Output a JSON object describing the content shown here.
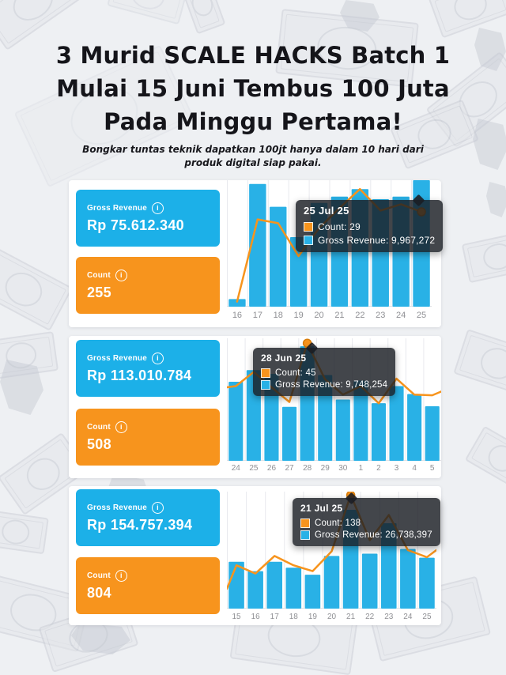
{
  "header": {
    "title_line1": "3 Murid SCALE HACKS Batch 1",
    "title_line2": "Mulai 15 Juni Tembus 100 Juta",
    "title_line3": "Pada Minggu Pertama!",
    "subtitle_line1": "Bongkar tuntas teknik dapatkan 100jt hanya dalam 10 hari dari",
    "subtitle_line2": "produk digital siap pakai."
  },
  "colors": {
    "bar_blue": "#29b1e6",
    "card_blue": "#1cb0e8",
    "orange": "#f7941d",
    "dot_stroke": "#d97d0a",
    "gridline": "#e8e9ee",
    "baseline": "#dfe0e4",
    "axis_label": "#8f9094",
    "tooltip_bg": "rgba(26,29,35,0.82)"
  },
  "panels": [
    {
      "revenue_label": "Gross Revenue",
      "revenue_value": "Rp 75.612.340",
      "count_label": "Count",
      "count_value": "255",
      "info_glyph": "i",
      "tooltip": {
        "title": "25 Jul 25",
        "count_row": "Count: 29",
        "revenue_row": "Gross Revenue: 9,967,272"
      }
    },
    {
      "revenue_label": "Gross Revenue",
      "revenue_value": "Rp 113.010.784",
      "count_label": "Count",
      "count_value": "508",
      "info_glyph": "i",
      "tooltip": {
        "title": "28 Jun 25",
        "count_row": "Count: 45",
        "revenue_row": "Gross Revenue: 9,748,254"
      }
    },
    {
      "revenue_label": "Gross Revenue",
      "revenue_value": "Rp 154.757.394",
      "count_label": "Count",
      "count_value": "804",
      "info_glyph": "i",
      "tooltip": {
        "title": "21 Jul 25",
        "count_row": "Count: 138",
        "revenue_row": "Gross Revenue: 26,738,397"
      }
    }
  ],
  "chart_data": [
    {
      "type": "bar+line",
      "title": "Sales dashboard - student 1 (totals: Rp 75.612.340 revenue, 255 count)",
      "categories": [
        "16",
        "17",
        "18",
        "19",
        "20",
        "21",
        "22",
        "23",
        "24",
        "25"
      ],
      "units": "relative_height_0_to_1_no_y_axis_shown",
      "series": [
        {
          "name": "Gross Revenue",
          "role": "bar",
          "values_rel": [
            0.06,
            0.97,
            0.79,
            0.55,
            0.82,
            0.87,
            0.93,
            0.85,
            0.87,
            1.0
          ]
        },
        {
          "name": "Count",
          "role": "line",
          "values_rel": [
            0.04,
            0.69,
            0.66,
            0.4,
            0.62,
            0.78,
            0.93,
            0.76,
            0.81,
            0.75
          ],
          "edge_start_rel": null,
          "edge_end_rel": null
        }
      ],
      "highlight": {
        "index": 9,
        "date": "25 Jul 25",
        "count": 29,
        "gross_revenue": 9967272
      },
      "legend": "hidden",
      "grid": "vertical"
    },
    {
      "type": "bar+line",
      "title": "Sales dashboard - student 2 (totals: Rp 113.010.784 revenue, 508 count)",
      "categories": [
        "24",
        "25",
        "26",
        "27",
        "28",
        "29",
        "30",
        "1",
        "2",
        "3",
        "4",
        "5"
      ],
      "units": "relative_height_0_to_1_no_y_axis_shown",
      "series": [
        {
          "name": "Gross Revenue",
          "role": "bar",
          "values_rel": [
            0.645,
            0.74,
            0.71,
            0.44,
            0.935,
            0.7,
            0.5,
            0.655,
            0.47,
            0.61,
            0.545,
            0.445
          ]
        },
        {
          "name": "Count",
          "role": "line",
          "values_rel": [
            0.61,
            0.725,
            0.6,
            0.48,
            0.96,
            0.665,
            0.54,
            0.61,
            0.47,
            0.67,
            0.54,
            0.535
          ],
          "edge_start_rel": 0.6,
          "edge_end_rel": 0.565
        }
      ],
      "highlight": {
        "index": 4,
        "date": "28 Jun 25",
        "count": 45,
        "gross_revenue": 9748254
      },
      "legend": "hidden",
      "grid": "vertical"
    },
    {
      "type": "bar+line",
      "title": "Sales dashboard - student 3 (totals: Rp 154.757.394 revenue, 804 count)",
      "categories": [
        "15",
        "16",
        "17",
        "18",
        "19",
        "20",
        "21",
        "22",
        "23",
        "24",
        "25"
      ],
      "units": "relative_height_0_to_1_no_y_axis_shown",
      "series": [
        {
          "name": "Gross Revenue",
          "role": "bar",
          "values_rel": [
            0.4,
            0.32,
            0.4,
            0.35,
            0.29,
            0.45,
            0.845,
            0.47,
            0.73,
            0.51,
            0.435
          ]
        },
        {
          "name": "Count",
          "role": "line",
          "values_rel": [
            0.37,
            0.3,
            0.45,
            0.37,
            0.32,
            0.49,
            0.97,
            0.585,
            0.8,
            0.5,
            0.44
          ],
          "edge_start_rel": 0.17,
          "edge_end_rel": 0.5
        }
      ],
      "highlight": {
        "index": 6,
        "date": "21 Jul 25",
        "count": 138,
        "gross_revenue": 26738397
      },
      "legend": "hidden",
      "grid": "vertical"
    }
  ]
}
